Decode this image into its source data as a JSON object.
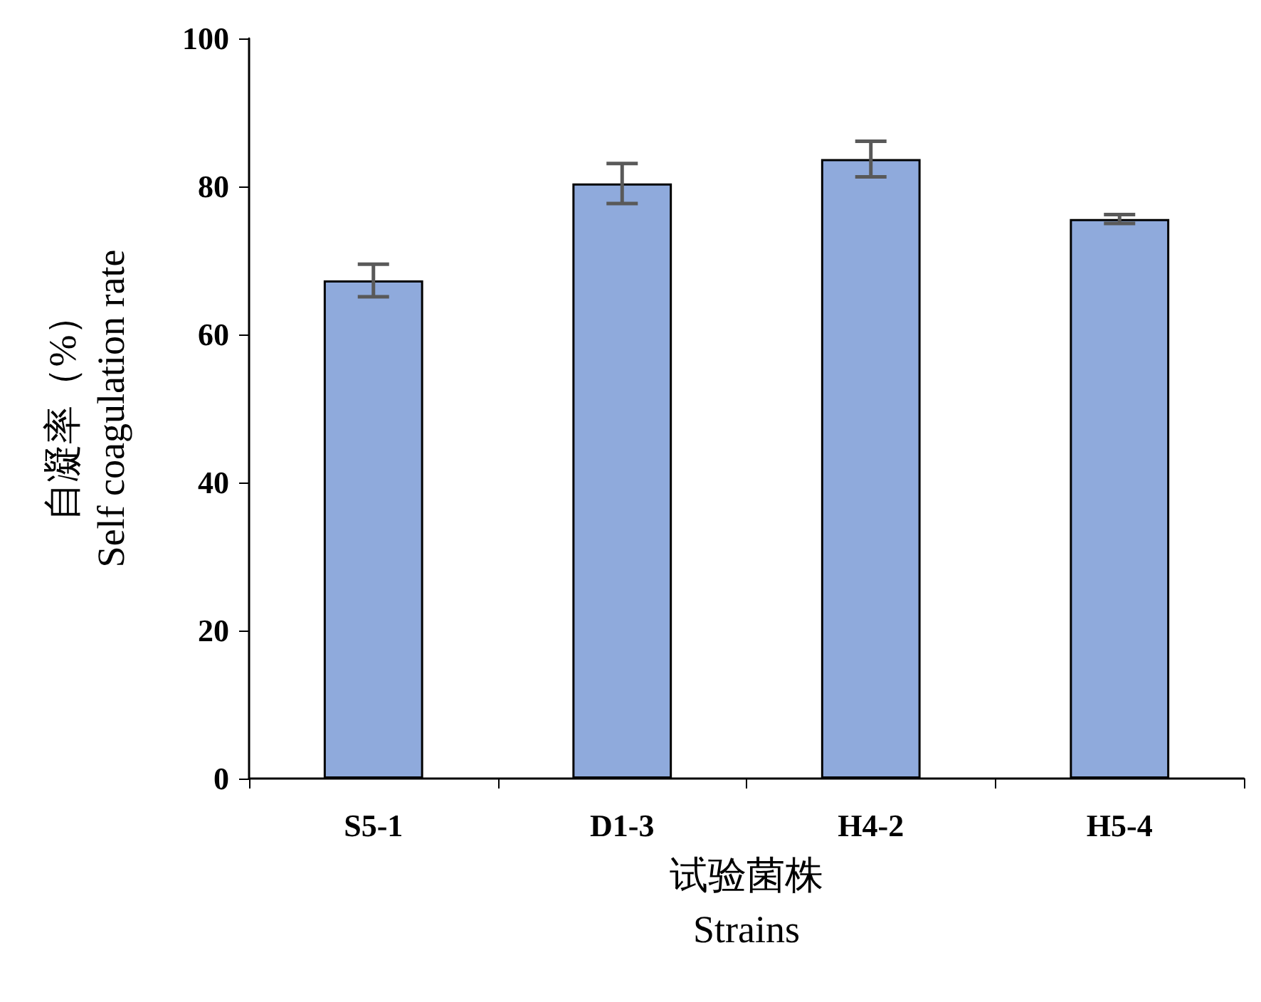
{
  "chart_data": {
    "type": "bar",
    "xlabel": "试验菌株\nStrains",
    "ylabel": "自凝率（%）\nSelf coagulation rate",
    "categories": [
      "S5-1",
      "D1-3",
      "H4-2",
      "H5-4"
    ],
    "values": [
      67.3,
      80.4,
      83.7,
      75.6
    ],
    "errors": [
      2.2,
      2.7,
      2.4,
      0.6
    ],
    "color": "#8faadc",
    "ylim": [
      0,
      100
    ],
    "yticks": [
      0,
      20,
      40,
      60,
      80,
      100
    ],
    "grid": false
  }
}
